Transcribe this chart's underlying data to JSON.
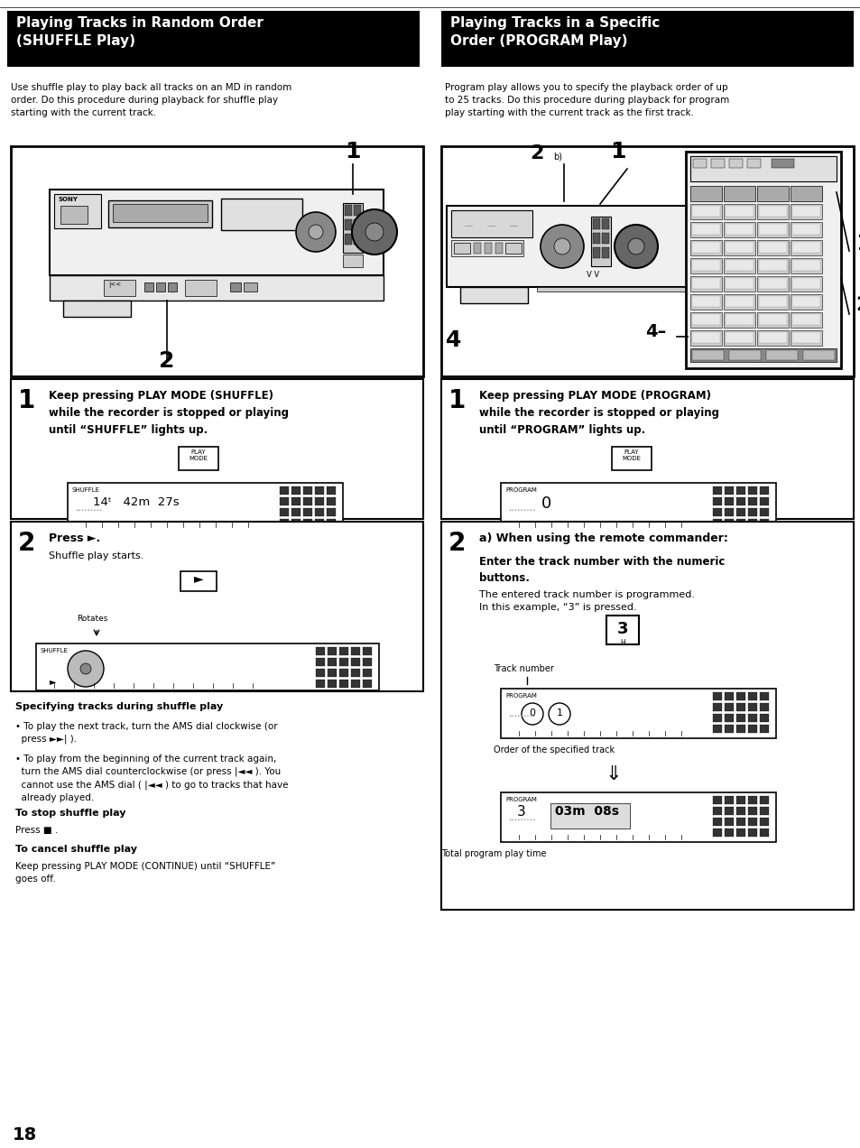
{
  "bg_color": "#ffffff",
  "page_width": 9.54,
  "page_height": 12.72,
  "left_header_text": "Playing Tracks in Random Order\n(SHUFFLE Play)",
  "right_header_text": "Playing Tracks in a Specific\nOrder (PROGRAM Play)",
  "left_intro": "Use shuffle play to play back all tracks on an MD in random\norder. Do this procedure during playback for shuffle play\nstarting with the current track.",
  "right_intro": "Program play allows you to specify the playback order of up\nto 25 tracks. Do this procedure during playback for program\nplay starting with the current track as the first track.",
  "page_number": "18"
}
